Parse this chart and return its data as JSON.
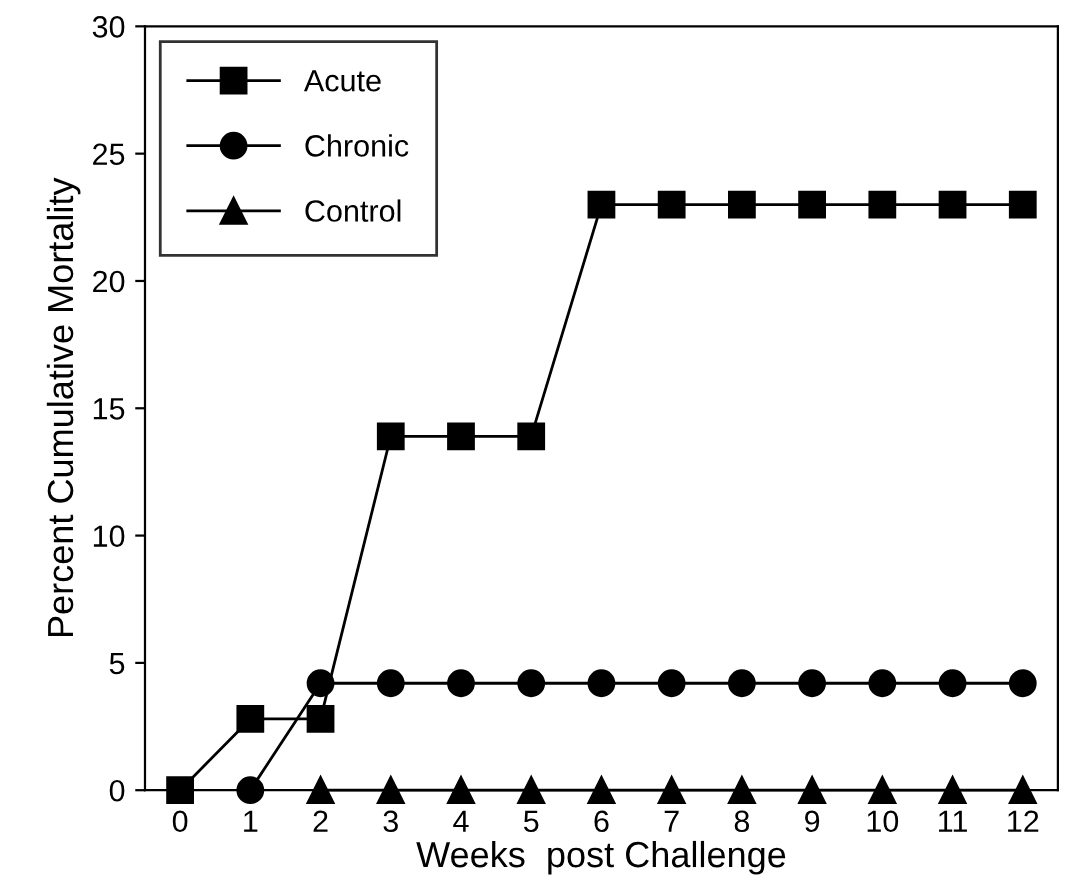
{
  "chart_data": {
    "type": "line",
    "xlabel": "Weeks  post Challenge",
    "ylabel": "Percent Cumulative Mortality",
    "x": [
      0,
      1,
      2,
      3,
      4,
      5,
      6,
      7,
      8,
      9,
      10,
      11,
      12
    ],
    "series": [
      {
        "name": "Acute",
        "color": "#000000",
        "marker": "square",
        "values": [
          0,
          2.8,
          2.8,
          13.9,
          13.9,
          13.9,
          23,
          23,
          23,
          23,
          23,
          23,
          23
        ]
      },
      {
        "name": "Chronic",
        "color": "#000000",
        "marker": "circle",
        "values": [
          null,
          0,
          4.2,
          4.2,
          4.2,
          4.2,
          4.2,
          4.2,
          4.2,
          4.2,
          4.2,
          4.2,
          4.2
        ]
      },
      {
        "name": "Control",
        "color": "#000000",
        "marker": "triangle",
        "values": [
          null,
          null,
          0,
          0,
          0,
          0,
          0,
          0,
          0,
          0,
          0,
          0,
          0
        ]
      }
    ],
    "xlim": [
      -0.5,
      12.5
    ],
    "xticks": [
      0,
      1,
      2,
      3,
      4,
      5,
      6,
      7,
      8,
      9,
      10,
      11,
      12
    ],
    "ylim": [
      0,
      30
    ],
    "yticks": [
      0,
      5,
      10,
      15,
      20,
      25,
      30
    ],
    "line_style": "solid",
    "grid": false,
    "legend": "top left"
  }
}
